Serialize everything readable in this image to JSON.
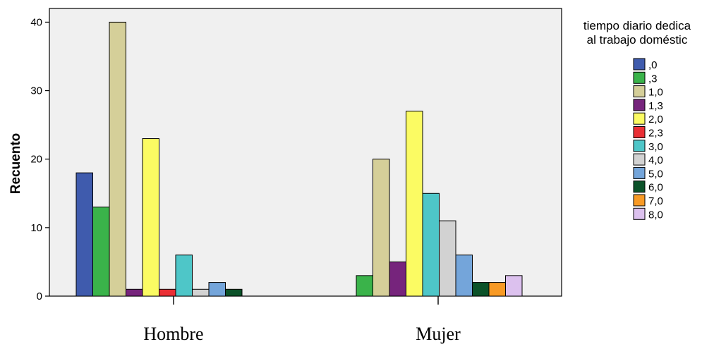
{
  "chart_data": {
    "type": "bar",
    "ylabel": "Recuento",
    "ylim": [
      0,
      42
    ],
    "yticks": [
      0,
      10,
      20,
      30,
      40
    ],
    "grid": false,
    "legend_placement": "right",
    "legend_title": [
      "tiempo diario dedica",
      "al trabajo doméstic"
    ],
    "categories": [
      "Hombre",
      "Mujer"
    ],
    "series": [
      {
        "name": ",0",
        "color": "#3f5bad",
        "values": [
          18,
          0
        ]
      },
      {
        "name": ",3",
        "color": "#3ab34a",
        "values": [
          13,
          3
        ]
      },
      {
        "name": "1,0",
        "color": "#d5cf99",
        "values": [
          40,
          20
        ]
      },
      {
        "name": "1,3",
        "color": "#76247c",
        "values": [
          1,
          5
        ]
      },
      {
        "name": "2,0",
        "color": "#fbfb63",
        "values": [
          23,
          27
        ]
      },
      {
        "name": "2,3",
        "color": "#ea2f35",
        "values": [
          1,
          0
        ]
      },
      {
        "name": "3,0",
        "color": "#4ec6c8",
        "values": [
          6,
          15
        ]
      },
      {
        "name": "4,0",
        "color": "#d2d2d2",
        "values": [
          1,
          11
        ]
      },
      {
        "name": "5,0",
        "color": "#74a5da",
        "values": [
          2,
          6
        ]
      },
      {
        "name": "6,0",
        "color": "#0b5229",
        "values": [
          1,
          2
        ]
      },
      {
        "name": "7,0",
        "color": "#f89a25",
        "values": [
          0,
          2
        ]
      },
      {
        "name": "8,0",
        "color": "#dcc1ee",
        "values": [
          0,
          3
        ]
      }
    ]
  }
}
